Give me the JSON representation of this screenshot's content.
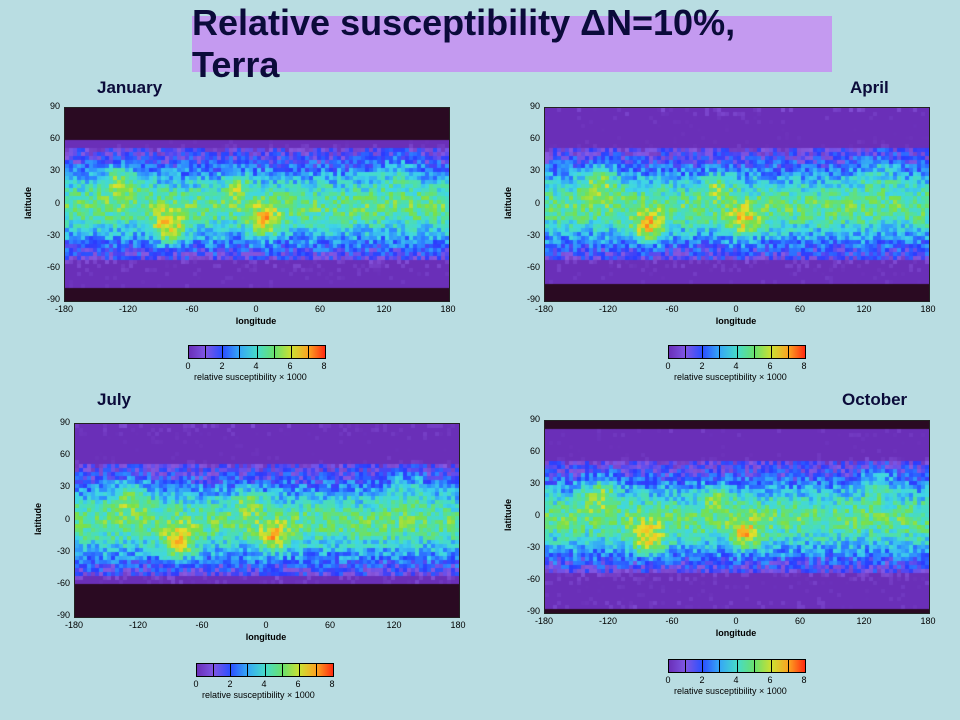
{
  "title": "Relative susceptibility ΔN=10%, Terra",
  "chart_data": [
    {
      "type": "heatmap",
      "panel": "January",
      "xlabel": "longitude",
      "ylabel": "latitude",
      "x_ticks": [
        "-180",
        "-120",
        "-60",
        "0",
        "60",
        "120",
        "180"
      ],
      "y_ticks": [
        "90",
        "60",
        "30",
        "0",
        "-30",
        "-60",
        "-90"
      ],
      "xlim": [
        -180,
        180
      ],
      "ylim": [
        -90,
        90
      ],
      "colorbar": {
        "label": "relative susceptibility × 1000",
        "ticks": [
          "0",
          "2",
          "4",
          "6",
          "8"
        ],
        "range": [
          0,
          8
        ]
      }
    },
    {
      "type": "heatmap",
      "panel": "April",
      "xlabel": "longitude",
      "ylabel": "latitude",
      "x_ticks": [
        "-180",
        "-120",
        "-60",
        "0",
        "60",
        "120",
        "180"
      ],
      "y_ticks": [
        "90",
        "60",
        "30",
        "0",
        "-30",
        "-60",
        "-90"
      ],
      "xlim": [
        -180,
        180
      ],
      "ylim": [
        -90,
        90
      ],
      "colorbar": {
        "label": "relative susceptibility × 1000",
        "ticks": [
          "0",
          "2",
          "4",
          "6",
          "8"
        ],
        "range": [
          0,
          8
        ]
      }
    },
    {
      "type": "heatmap",
      "panel": "July",
      "xlabel": "longitude",
      "ylabel": "latitude",
      "x_ticks": [
        "-180",
        "-120",
        "-60",
        "0",
        "60",
        "120",
        "180"
      ],
      "y_ticks": [
        "90",
        "60",
        "30",
        "0",
        "-30",
        "-60",
        "-90"
      ],
      "xlim": [
        -180,
        180
      ],
      "ylim": [
        -90,
        90
      ],
      "colorbar": {
        "label": "relative susceptibility × 1000",
        "ticks": [
          "0",
          "2",
          "4",
          "6",
          "8"
        ],
        "range": [
          0,
          8
        ]
      }
    },
    {
      "type": "heatmap",
      "panel": "October",
      "xlabel": "longitude",
      "ylabel": "latitude",
      "x_ticks": [
        "-180",
        "-120",
        "-60",
        "0",
        "60",
        "120",
        "180"
      ],
      "y_ticks": [
        "90",
        "60",
        "30",
        "0",
        "-30",
        "-60",
        "-90"
      ],
      "xlim": [
        -180,
        180
      ],
      "ylim": [
        -90,
        90
      ],
      "colorbar": {
        "label": "relative susceptibility × 1000",
        "ticks": [
          "0",
          "2",
          "4",
          "6",
          "8"
        ],
        "range": [
          0,
          8
        ]
      }
    }
  ],
  "colors": {
    "background": "#b9dde2",
    "title_box": "#c49af0",
    "no_data": "#2a0a22",
    "colormap": [
      "#6a2fb8",
      "#8a5ae0",
      "#2a3cff",
      "#2f8cff",
      "#3fd6e8",
      "#4fe0a8",
      "#7ae04a",
      "#e8e02a",
      "#ff9a20",
      "#ff2a10"
    ]
  }
}
